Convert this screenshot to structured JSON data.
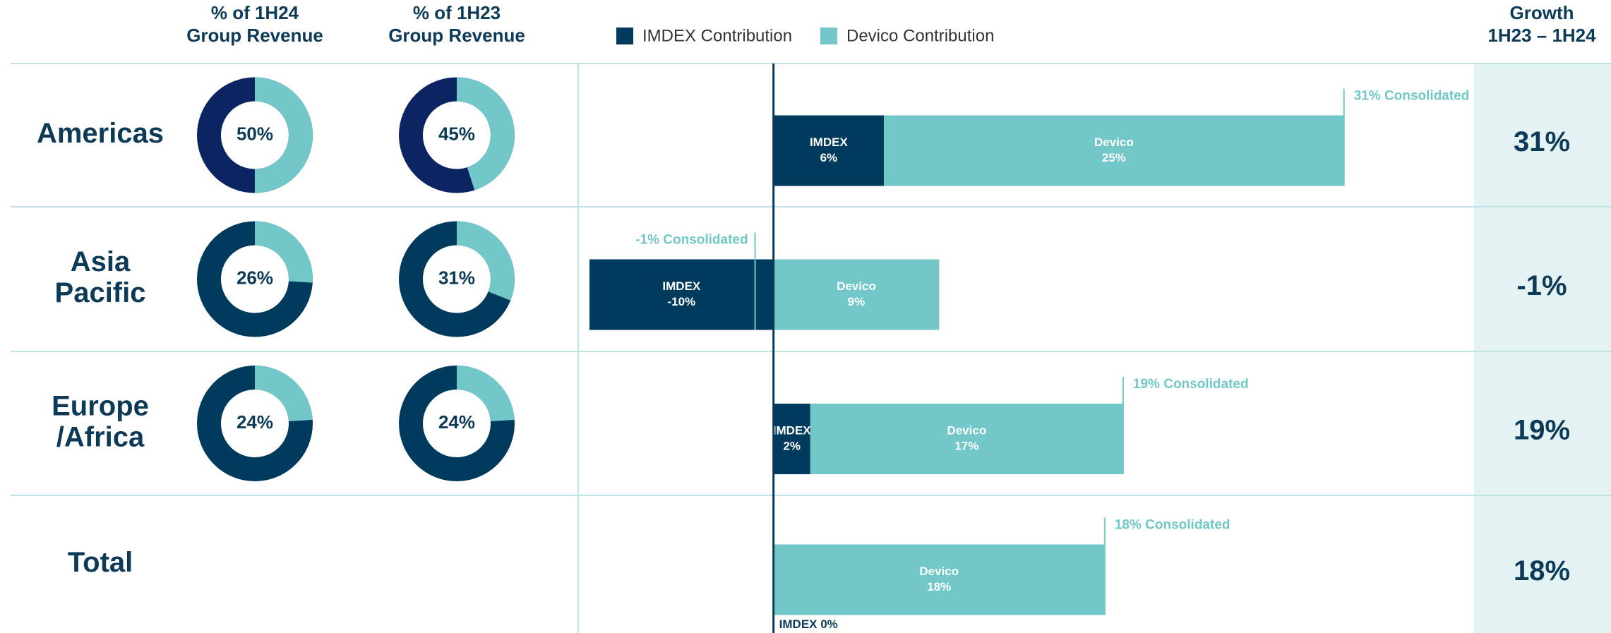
{
  "header": {
    "share_1h24": [
      "% of 1H24",
      "Group Revenue"
    ],
    "share_1h23": [
      "% of 1H23",
      "Group Revenue"
    ],
    "growth": [
      "Growth",
      "1H23 – 1H24"
    ]
  },
  "legend": [
    {
      "name": "IMDEX Contribution",
      "color": "#003a5c"
    },
    {
      "name": "Devico Contribution",
      "color": "#72c7c9"
    }
  ],
  "segment_names": [
    "IMDEX",
    "Devico"
  ],
  "xlim": [
    -10,
    35
  ],
  "rows": [
    {
      "region": [
        "Americas"
      ],
      "donut_base": "#0c2461",
      "share_1h24": 50,
      "share_1h24_label": "50%",
      "share_1h23": 45,
      "share_1h23_label": "45%",
      "imdex": 6,
      "imdex_label": "6%",
      "devico": 25,
      "devico_label": "25%",
      "consolidated": 31,
      "consolidated_label": "31% Consolidated",
      "growth_label": "31%"
    },
    {
      "region": [
        "Asia",
        "Pacific"
      ],
      "donut_base": "#003a5c",
      "share_1h24": 26,
      "share_1h24_label": "26%",
      "share_1h23": 31,
      "share_1h23_label": "31%",
      "imdex": -10,
      "imdex_label": "-10%",
      "devico": 9,
      "devico_label": "9%",
      "consolidated": -1,
      "consolidated_label": "-1% Consolidated",
      "growth_label": "-1%"
    },
    {
      "region": [
        "Europe",
        "/Africa"
      ],
      "donut_base": "#003a5c",
      "share_1h24": 24,
      "share_1h24_label": "24%",
      "share_1h23": 24,
      "share_1h23_label": "24%",
      "imdex": 2,
      "imdex_label": "2%",
      "devico": 17,
      "devico_label": "17%",
      "consolidated": 19,
      "consolidated_label": "19% Consolidated",
      "growth_label": "19%"
    },
    {
      "region": [
        "Total"
      ],
      "imdex": 0,
      "imdex_label": "IMDEX 0%",
      "devico": 18,
      "devico_label": "18%",
      "consolidated": 18,
      "consolidated_label": "18% Consolidated",
      "growth_label": "18%"
    }
  ]
}
